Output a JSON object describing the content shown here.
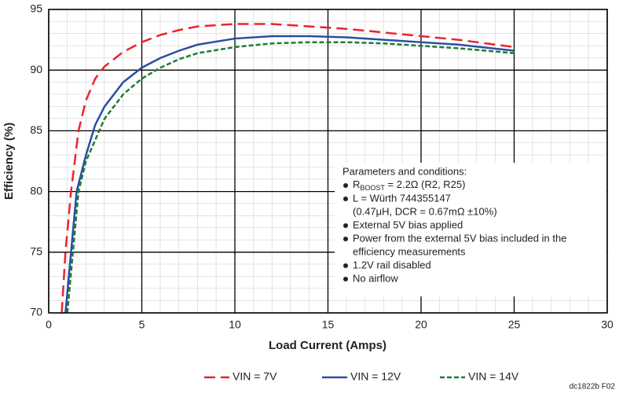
{
  "chart_data": {
    "type": "line",
    "x_label": "Load Current (Amps)",
    "y_label": "Efficiency (%)",
    "xlim": [
      0,
      30
    ],
    "ylim": [
      70,
      95
    ],
    "xticks": [
      0,
      5,
      10,
      15,
      20,
      25,
      30
    ],
    "yticks": [
      70,
      75,
      80,
      85,
      90,
      95
    ],
    "grid": true,
    "series": [
      {
        "name": "VIN = 7V",
        "color": "#e8262b",
        "style": "long-dash",
        "x": [
          0.7,
          0.9,
          1.2,
          1.6,
          2,
          2.5,
          3,
          4,
          5,
          6,
          7,
          8,
          10,
          12,
          14,
          16,
          18,
          20,
          22,
          25
        ],
        "values": [
          70,
          75,
          80,
          85,
          87.5,
          89.3,
          90.3,
          91.5,
          92.3,
          92.9,
          93.3,
          93.6,
          93.8,
          93.8,
          93.6,
          93.4,
          93.1,
          92.8,
          92.5,
          91.9
        ]
      },
      {
        "name": "VIN = 12V",
        "color": "#2b4ea2",
        "style": "solid",
        "x": [
          0.9,
          1.2,
          1.5,
          2,
          2.5,
          3,
          4,
          5,
          6,
          7,
          8,
          10,
          12,
          14,
          16,
          18,
          20,
          22,
          25
        ],
        "values": [
          70,
          75,
          80,
          83,
          85.5,
          87,
          89,
          90.2,
          91,
          91.6,
          92.1,
          92.6,
          92.8,
          92.8,
          92.7,
          92.5,
          92.3,
          92.1,
          91.6
        ]
      },
      {
        "name": "VIN = 14V",
        "color": "#1f7a3a",
        "style": "short-dash",
        "x": [
          1,
          1.3,
          1.6,
          2,
          3,
          4,
          5,
          6,
          7,
          8,
          10,
          12,
          14,
          16,
          18,
          20,
          22,
          25
        ],
        "values": [
          70,
          75,
          80,
          82.5,
          86,
          88,
          89.3,
          90.2,
          90.9,
          91.4,
          91.9,
          92.2,
          92.3,
          92.3,
          92.2,
          92,
          91.8,
          91.4
        ]
      }
    ],
    "annotation": {
      "title": "Parameters and conditions:",
      "bullets": [
        [
          {
            "main": "R",
            "sub": "BOOST",
            "rest": " = 2.2Ω (R2, R25)"
          }
        ],
        [
          "L = Würth 744355147",
          "(0.47μH, DCR = 0.67mΩ ±10%)"
        ],
        [
          "External 5V bias applied"
        ],
        [
          "Power from the external 5V bias included in the",
          "efficiency measurements"
        ],
        [
          "1.2V rail disabled"
        ],
        [
          "No airflow"
        ]
      ]
    },
    "footer": "dc1822b F02"
  }
}
